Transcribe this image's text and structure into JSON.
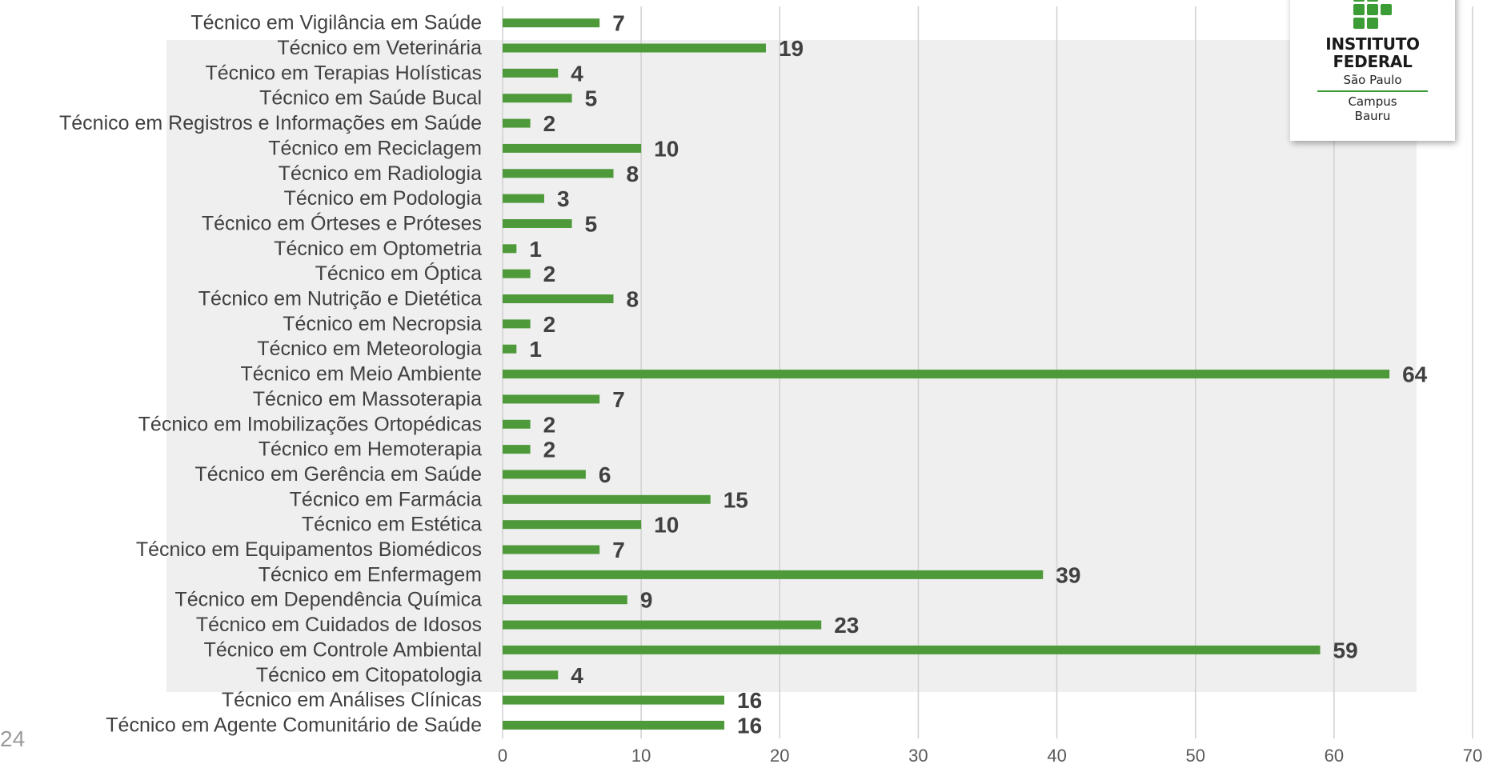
{
  "page_number": "24",
  "logo": {
    "title_line1": "INSTITUTO",
    "title_line2": "FEDERAL",
    "subtitle": "São Paulo",
    "campus_line1": "Campus",
    "campus_line2": "Bauru",
    "brand_green": "#3c9c35",
    "brand_red": "#d0202a"
  },
  "colors": {
    "bar": "#4e9a3a",
    "plot_background": "#efefef",
    "gridline": "#d0d0d0",
    "label_text": "#404040"
  },
  "chart_data": {
    "type": "bar",
    "orientation": "horizontal",
    "categories": [
      "Técnico em Vigilância em Saúde",
      "Técnico em Veterinária",
      "Técnico em Terapias Holísticas",
      "Técnico em Saúde Bucal",
      "Técnico em Registros e Informações em Saúde",
      "Técnico em Reciclagem",
      "Técnico em Radiologia",
      "Técnico em Podologia",
      "Técnico em Órteses e Próteses",
      "Técnico em Optometria",
      "Técnico em Óptica",
      "Técnico em Nutrição e Dietética",
      "Técnico em Necropsia",
      "Técnico em Meteorologia",
      "Técnico em Meio Ambiente",
      "Técnico em Massoterapia",
      "Técnico em Imobilizações Ortopédicas",
      "Técnico em Hemoterapia",
      "Técnico em Gerência em Saúde",
      "Técnico em Farmácia",
      "Técnico em Estética",
      "Técnico em Equipamentos Biomédicos",
      "Técnico em Enfermagem",
      "Técnico em Dependência Química",
      "Técnico em Cuidados de Idosos",
      "Técnico em Controle Ambiental",
      "Técnico em Citopatologia",
      "Técnico em Análises Clínicas",
      "Técnico em Agente Comunitário de Saúde"
    ],
    "values": [
      7,
      19,
      4,
      5,
      2,
      10,
      8,
      3,
      5,
      1,
      2,
      8,
      2,
      1,
      64,
      7,
      2,
      2,
      6,
      15,
      10,
      7,
      39,
      9,
      23,
      59,
      4,
      16,
      16
    ],
    "data_labels": [
      "7",
      "19",
      "4",
      "5",
      "2",
      "10",
      "8",
      "3",
      "5",
      "1",
      "2",
      "8",
      "2",
      "1",
      "64",
      "7",
      "2",
      "2",
      "6",
      "15",
      "10",
      "7",
      "39",
      "9",
      "23",
      "59",
      "4",
      "16",
      "16"
    ],
    "x_ticks": [
      "0",
      "10",
      "20",
      "30",
      "40",
      "50",
      "60",
      "70"
    ],
    "xlim": [
      0,
      70
    ],
    "grid": true,
    "title": "",
    "xlabel": "",
    "ylabel": ""
  }
}
